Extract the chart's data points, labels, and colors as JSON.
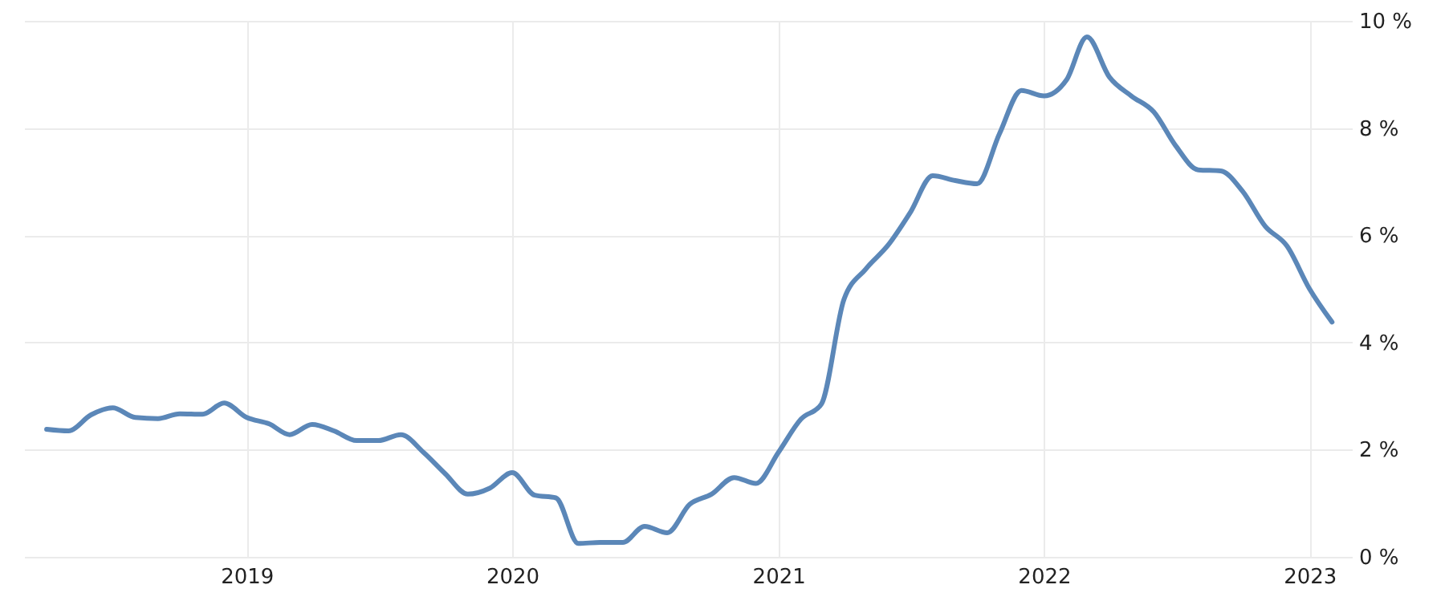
{
  "chart_data": {
    "type": "line",
    "x": [
      "2018-04",
      "2018-05",
      "2018-06",
      "2018-07",
      "2018-08",
      "2018-09",
      "2018-10",
      "2018-11",
      "2018-12",
      "2019-01",
      "2019-02",
      "2019-03",
      "2019-04",
      "2019-05",
      "2019-06",
      "2019-07",
      "2019-08",
      "2019-09",
      "2019-10",
      "2019-11",
      "2019-12",
      "2020-01",
      "2020-02",
      "2020-03",
      "2020-04",
      "2020-05",
      "2020-06",
      "2020-07",
      "2020-08",
      "2020-09",
      "2020-10",
      "2020-11",
      "2020-12",
      "2021-01",
      "2021-02",
      "2021-03",
      "2021-04",
      "2021-05",
      "2021-06",
      "2021-07",
      "2021-08",
      "2021-09",
      "2021-10",
      "2021-11",
      "2021-12",
      "2022-01",
      "2022-02",
      "2022-03",
      "2022-04",
      "2022-05",
      "2022-06",
      "2022-07",
      "2022-08",
      "2022-09",
      "2022-10",
      "2022-11",
      "2022-12",
      "2023-01",
      "2023-02"
    ],
    "series": [
      {
        "color": "#5b87b8",
        "values": [
          2.38,
          2.35,
          2.65,
          2.78,
          2.6,
          2.58,
          2.67,
          2.66,
          2.87,
          2.6,
          2.48,
          2.28,
          2.47,
          2.35,
          2.17,
          2.17,
          2.28,
          1.95,
          1.55,
          1.17,
          1.28,
          1.57,
          1.15,
          1.1,
          0.25,
          0.27,
          0.27,
          0.57,
          0.45,
          0.98,
          1.17,
          1.48,
          1.37,
          1.95,
          2.57,
          2.85,
          4.8,
          5.37,
          5.82,
          6.42,
          7.11,
          7.02,
          6.96,
          7.9,
          8.7,
          8.6,
          8.9,
          9.7,
          8.95,
          8.6,
          8.3,
          7.67,
          7.22,
          7.2,
          6.82,
          6.17,
          5.8,
          5.0,
          4.38
        ]
      }
    ],
    "xlim": [
      "2018-03-01",
      "2023-02-15"
    ],
    "xticks": [
      "2019",
      "2020",
      "2021",
      "2022",
      "2023"
    ],
    "ylim": [
      0,
      10
    ],
    "yticks": [
      {
        "value": 0,
        "label": "0 %"
      },
      {
        "value": 2,
        "label": "2 %"
      },
      {
        "value": 4,
        "label": "4 %"
      },
      {
        "value": 6,
        "label": "6 %"
      },
      {
        "value": 8,
        "label": "8 %"
      },
      {
        "value": 10,
        "label": "10 %"
      }
    ],
    "grid": true
  }
}
